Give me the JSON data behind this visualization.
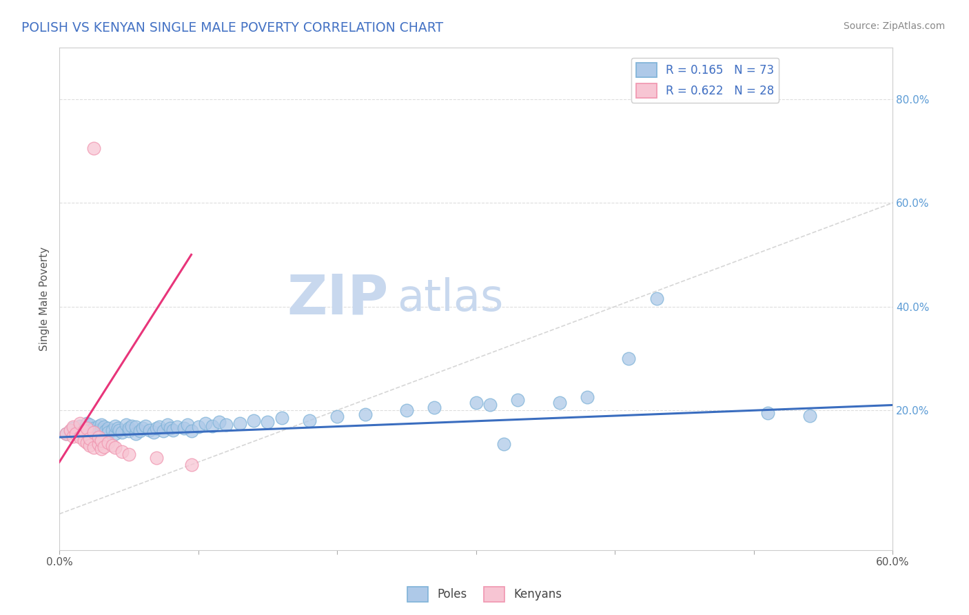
{
  "title": "POLISH VS KENYAN SINGLE MALE POVERTY CORRELATION CHART",
  "source_text": "Source: ZipAtlas.com",
  "ylabel": "Single Male Poverty",
  "xlim": [
    0,
    0.6
  ],
  "ylim": [
    -0.07,
    0.9
  ],
  "xtick_vals": [
    0.0,
    0.1,
    0.2,
    0.3,
    0.4,
    0.5,
    0.6
  ],
  "xtick_labels": [
    "0.0%",
    "",
    "",
    "",
    "",
    "",
    "60.0%"
  ],
  "right_ytick_vals": [
    0.2,
    0.4,
    0.6,
    0.8
  ],
  "right_ytick_labels": [
    "20.0%",
    "40.0%",
    "60.0%",
    "80.0%"
  ],
  "R_poles": 0.165,
  "N_poles": 73,
  "R_kenyans": 0.622,
  "N_kenyans": 28,
  "blue_fill": "#aec9e8",
  "blue_edge": "#7fb3d8",
  "pink_fill": "#f7c5d3",
  "pink_edge": "#f096b0",
  "trend_blue": "#3a6dbf",
  "trend_pink": "#e8357a",
  "ref_line_color": "#cccccc",
  "watermark_color": "#c8d8ee",
  "poles_x": [
    0.005,
    0.008,
    0.01,
    0.012,
    0.015,
    0.015,
    0.018,
    0.02,
    0.02,
    0.022,
    0.022,
    0.025,
    0.025,
    0.028,
    0.028,
    0.03,
    0.03,
    0.03,
    0.032,
    0.033,
    0.035,
    0.035,
    0.038,
    0.04,
    0.04,
    0.042,
    0.043,
    0.045,
    0.048,
    0.05,
    0.05,
    0.052,
    0.055,
    0.055,
    0.058,
    0.06,
    0.062,
    0.065,
    0.068,
    0.07,
    0.072,
    0.075,
    0.078,
    0.08,
    0.082,
    0.085,
    0.09,
    0.092,
    0.095,
    0.1,
    0.105,
    0.11,
    0.115,
    0.12,
    0.13,
    0.14,
    0.15,
    0.16,
    0.18,
    0.2,
    0.22,
    0.25,
    0.27,
    0.3,
    0.31,
    0.33,
    0.36,
    0.38,
    0.41,
    0.43,
    0.51,
    0.54,
    0.32
  ],
  "poles_y": [
    0.155,
    0.16,
    0.165,
    0.158,
    0.162,
    0.17,
    0.155,
    0.168,
    0.175,
    0.16,
    0.172,
    0.158,
    0.165,
    0.17,
    0.162,
    0.155,
    0.163,
    0.172,
    0.168,
    0.16,
    0.165,
    0.158,
    0.162,
    0.155,
    0.17,
    0.165,
    0.162,
    0.158,
    0.172,
    0.16,
    0.165,
    0.17,
    0.155,
    0.168,
    0.16,
    0.165,
    0.17,
    0.162,
    0.158,
    0.165,
    0.168,
    0.16,
    0.172,
    0.165,
    0.162,
    0.168,
    0.165,
    0.172,
    0.16,
    0.168,
    0.175,
    0.17,
    0.178,
    0.172,
    0.175,
    0.18,
    0.178,
    0.185,
    0.18,
    0.188,
    0.192,
    0.2,
    0.205,
    0.215,
    0.21,
    0.22,
    0.215,
    0.225,
    0.3,
    0.415,
    0.195,
    0.19,
    0.135
  ],
  "kenyans_x": [
    0.005,
    0.008,
    0.01,
    0.01,
    0.012,
    0.015,
    0.015,
    0.018,
    0.018,
    0.02,
    0.02,
    0.022,
    0.022,
    0.025,
    0.025,
    0.028,
    0.028,
    0.03,
    0.03,
    0.032,
    0.035,
    0.038,
    0.04,
    0.045,
    0.05,
    0.07,
    0.095,
    0.025
  ],
  "kenyans_y": [
    0.155,
    0.162,
    0.15,
    0.168,
    0.155,
    0.148,
    0.175,
    0.142,
    0.16,
    0.138,
    0.165,
    0.132,
    0.145,
    0.128,
    0.158,
    0.135,
    0.148,
    0.125,
    0.142,
    0.13,
    0.138,
    0.132,
    0.128,
    0.12,
    0.115,
    0.108,
    0.095,
    0.705
  ],
  "trend_blue_x0": 0.0,
  "trend_blue_x1": 0.6,
  "trend_blue_y0": 0.148,
  "trend_blue_y1": 0.21,
  "trend_pink_x0": 0.0,
  "trend_pink_x1": 0.095,
  "trend_pink_y0": 0.1,
  "trend_pink_y1": 0.5,
  "ref_line_x0": 0.0,
  "ref_line_x1": 0.6,
  "ref_line_y0": 0.0,
  "ref_line_y1": 0.6
}
